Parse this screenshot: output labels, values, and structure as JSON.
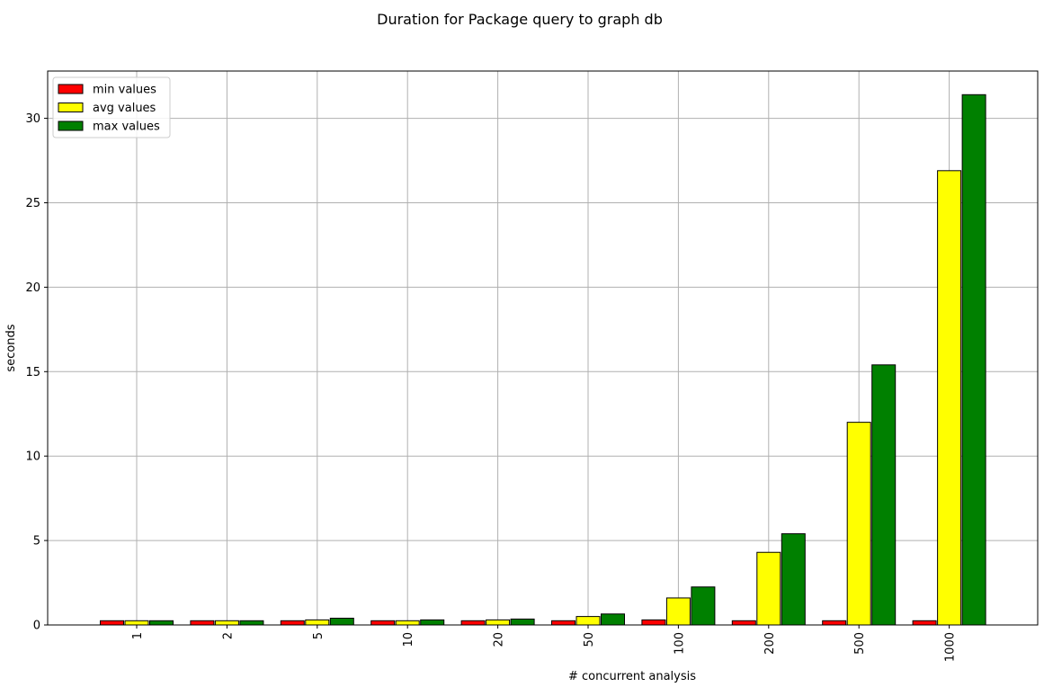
{
  "chart_data": {
    "type": "bar",
    "title": "Duration for Package query to graph db",
    "xlabel": "# concurrent analysis",
    "ylabel": "seconds",
    "categories": [
      "1",
      "2",
      "5",
      "10",
      "20",
      "50",
      "100",
      "200",
      "500",
      "1000"
    ],
    "ylim": [
      0,
      32.8
    ],
    "yticks": [
      0,
      5,
      10,
      15,
      20,
      25,
      30
    ],
    "grid": true,
    "legend_position": "top-left",
    "series": [
      {
        "name": "min values",
        "color": "#ff0000",
        "values": [
          0.25,
          0.25,
          0.25,
          0.25,
          0.25,
          0.25,
          0.3,
          0.25,
          0.25,
          0.25
        ]
      },
      {
        "name": "avg values",
        "color": "#ffff00",
        "values": [
          0.25,
          0.25,
          0.3,
          0.25,
          0.3,
          0.5,
          1.6,
          4.3,
          12.0,
          26.9
        ]
      },
      {
        "name": "max values",
        "color": "#008000",
        "values": [
          0.25,
          0.25,
          0.4,
          0.3,
          0.35,
          0.65,
          2.25,
          5.4,
          15.4,
          31.4
        ]
      }
    ]
  }
}
